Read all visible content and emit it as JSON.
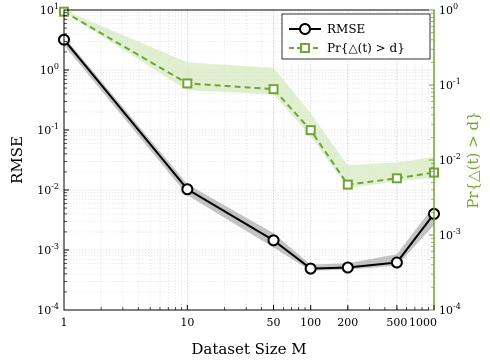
{
  "chart_data": {
    "type": "line",
    "x_scale": "log",
    "x_ticks": [
      1,
      10,
      50,
      100,
      200,
      500,
      1000
    ],
    "x_tick_labels": [
      "1",
      "10",
      "50",
      "100",
      "200",
      "500",
      "1000"
    ],
    "xlim": [
      1,
      1000
    ],
    "xlabel": "Dataset Size M",
    "left_axis": {
      "label": "RMSE",
      "scale": "log",
      "ylim": [
        0.0001,
        10
      ],
      "tick_labels": [
        "10^1",
        "10^0",
        "10^-1",
        "10^-2",
        "10^-3",
        "10^-4"
      ]
    },
    "right_axis": {
      "label": "Pr{△(t) > d}",
      "scale": "log",
      "ylim": [
        0.0001,
        1
      ],
      "tick_labels": [
        "10^0",
        "10^-1",
        "10^-2",
        "10^-3",
        "10^-4"
      ]
    },
    "grid": true,
    "legend_position": "top-right",
    "series": [
      {
        "name": "RMSE",
        "axis": "left",
        "color": "#000000",
        "marker": "circle",
        "line_style": "solid",
        "x": [
          1,
          10,
          50,
          100,
          200,
          500,
          1000
        ],
        "values": [
          3.2,
          0.0103,
          0.00145,
          0.00049,
          0.00051,
          0.00062,
          0.004
        ],
        "band_upper": [
          3.6,
          0.0125,
          0.0019,
          0.00057,
          0.0006,
          0.00085,
          0.0055
        ],
        "band_lower": [
          2.6,
          0.0082,
          0.0011,
          0.00045,
          0.00047,
          0.00055,
          0.0026
        ]
      },
      {
        "name": "Pr{△(t) > d}",
        "axis": "right",
        "color": "#6fa533",
        "marker": "square",
        "line_style": "dashed",
        "x": [
          1,
          10,
          50,
          100,
          200,
          500,
          1000
        ],
        "values": [
          0.95,
          0.105,
          0.088,
          0.025,
          0.0047,
          0.0057,
          0.0068
        ],
        "band_upper": [
          1.0,
          0.2,
          0.17,
          0.042,
          0.0085,
          0.0093,
          0.011
        ],
        "band_lower": [
          0.93,
          0.085,
          0.075,
          0.021,
          0.0042,
          0.0052,
          0.0058
        ]
      }
    ]
  }
}
